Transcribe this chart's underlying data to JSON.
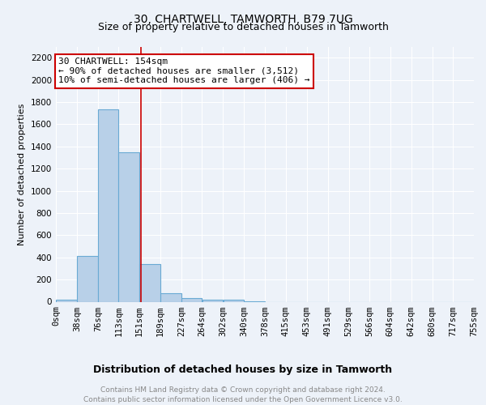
{
  "title": "30, CHARTWELL, TAMWORTH, B79 7UG",
  "subtitle": "Size of property relative to detached houses in Tamworth",
  "xlabel": "Distribution of detached houses by size in Tamworth",
  "ylabel": "Number of detached properties",
  "footer_line1": "Contains HM Land Registry data © Crown copyright and database right 2024.",
  "footer_line2": "Contains public sector information licensed under the Open Government Licence v3.0.",
  "bin_labels": [
    "0sqm",
    "38sqm",
    "76sqm",
    "113sqm",
    "151sqm",
    "189sqm",
    "227sqm",
    "264sqm",
    "302sqm",
    "340sqm",
    "378sqm",
    "415sqm",
    "453sqm",
    "491sqm",
    "529sqm",
    "566sqm",
    "604sqm",
    "642sqm",
    "680sqm",
    "717sqm",
    "755sqm"
  ],
  "bar_values": [
    15,
    410,
    1735,
    1350,
    340,
    75,
    35,
    20,
    15,
    5,
    0,
    0,
    0,
    0,
    0,
    0,
    0,
    0,
    0,
    0
  ],
  "bin_edges": [
    0,
    38,
    76,
    113,
    151,
    189,
    227,
    264,
    302,
    340,
    378,
    415,
    453,
    491,
    529,
    566,
    604,
    642,
    680,
    717,
    755
  ],
  "bar_color": "#b8d0e8",
  "bar_edge_color": "#6aaad4",
  "vline_x": 154,
  "vline_color": "#cc0000",
  "ylim": [
    0,
    2300
  ],
  "yticks": [
    0,
    200,
    400,
    600,
    800,
    1000,
    1200,
    1400,
    1600,
    1800,
    2000,
    2200
  ],
  "annotation_text_line1": "30 CHARTWELL: 154sqm",
  "annotation_text_line2": "← 90% of detached houses are smaller (3,512)",
  "annotation_text_line3": "10% of semi-detached houses are larger (406) →",
  "annotation_box_color": "#cc0000",
  "background_color": "#edf2f9",
  "grid_color": "#ffffff",
  "title_fontsize": 10,
  "subtitle_fontsize": 9,
  "ylabel_fontsize": 8,
  "xlabel_fontsize": 9,
  "tick_fontsize": 7.5,
  "footer_fontsize": 6.5,
  "annot_fontsize": 8
}
